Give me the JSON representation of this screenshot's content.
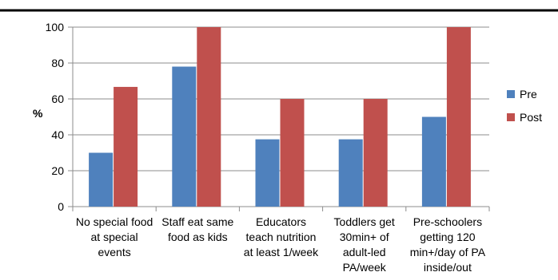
{
  "chart_data": {
    "type": "bar",
    "categories": [
      [
        "No special food",
        "at special",
        "events"
      ],
      [
        "Staff eat same",
        "food as kids"
      ],
      [
        "Educators",
        "teach nutrition",
        "at least 1/week"
      ],
      [
        "Toddlers get",
        "30min+ of",
        "adult-led",
        "PA/week"
      ],
      [
        "Pre-schoolers",
        "getting 120",
        "min+/day of PA",
        "inside/out"
      ]
    ],
    "series": [
      {
        "name": "Pre",
        "values": [
          30,
          78,
          37.5,
          37.5,
          50
        ],
        "color": "#4F81BD"
      },
      {
        "name": "Post",
        "values": [
          66.7,
          100,
          60,
          60,
          100
        ],
        "color": "#C0504D"
      }
    ],
    "title": "",
    "xlabel": "",
    "ylabel": "%",
    "ylim": [
      0,
      100
    ],
    "yticks": [
      "0",
      "20",
      "40",
      "60",
      "80",
      "100"
    ],
    "grid": true,
    "legend_position": "right"
  }
}
